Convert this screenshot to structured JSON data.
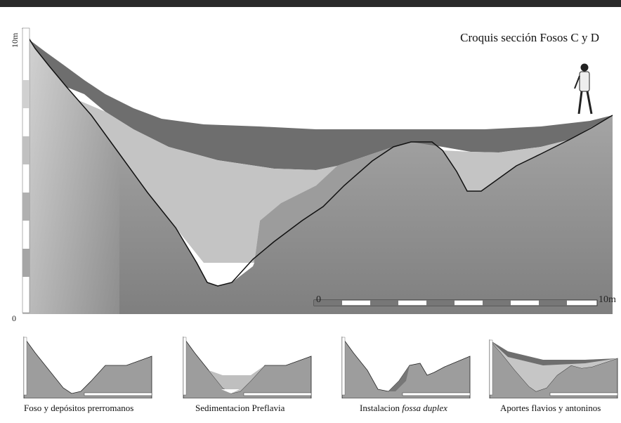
{
  "figure": {
    "title": "Croquis sección Fosos C y D",
    "vertical_scale": {
      "top_label": "10m",
      "bottom_label": "0"
    },
    "horizontal_scale": {
      "start_label": "0",
      "end_label": "10m"
    }
  },
  "thumbnails": [
    {
      "caption_pre": "Foso y depósitos prerromanos",
      "caption_em": "",
      "caption_post": ""
    },
    {
      "caption_pre": "Sedimentacion Preflavia",
      "caption_em": "",
      "caption_post": ""
    },
    {
      "caption_pre": "Instalacion ",
      "caption_em": "fossa duplex",
      "caption_post": ""
    },
    {
      "caption_pre": "Aportes flavios y antoninos",
      "caption_em": "",
      "caption_post": ""
    }
  ],
  "colors": {
    "ground": "#8d8d8d",
    "upper_fill": "#6e6e6e",
    "light_fill": "#c4c4c4",
    "mid_fill": "#9a9a9a",
    "white_fill": "#ffffff",
    "outline": "#111111"
  }
}
